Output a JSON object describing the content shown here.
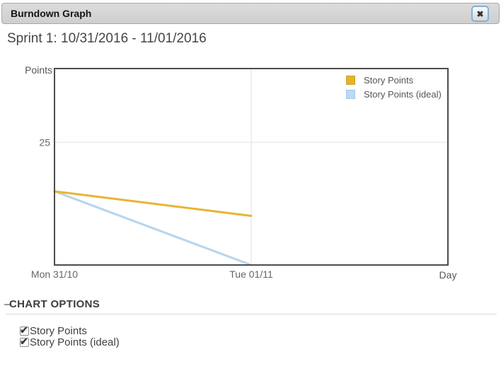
{
  "window": {
    "title": "Burndown Graph",
    "close_icon": "✖"
  },
  "sprint": {
    "heading": "Sprint 1: 10/31/2016 - 11/01/2016"
  },
  "chart_data": {
    "type": "line",
    "ylabel": "Points",
    "xlabel": "Day",
    "x_ticks": [
      "Mon 31/10",
      "Tue 01/11"
    ],
    "x_extent": 2,
    "ylim": [
      0,
      40
    ],
    "y_ticks": [
      25
    ],
    "grid": true,
    "legend_position": "top-right",
    "series": [
      {
        "name": "Story Points",
        "x": [
          0,
          1
        ],
        "values": [
          15,
          10
        ],
        "color": "#e9b430",
        "swatch_fill": "#e5b42e",
        "swatch_border": "#cda128"
      },
      {
        "name": "Story Points (ideal)",
        "x": [
          0,
          1
        ],
        "values": [
          15,
          0
        ],
        "color": "#b5d5ef",
        "swatch_fill": "#bcdaf2",
        "swatch_border": "#a3c6e4"
      }
    ]
  },
  "chart_options": {
    "heading": "CHART OPTIONS",
    "checkboxes": [
      {
        "label": "Story Points",
        "checked": true
      },
      {
        "label": "Story Points (ideal)",
        "checked": true
      }
    ]
  }
}
